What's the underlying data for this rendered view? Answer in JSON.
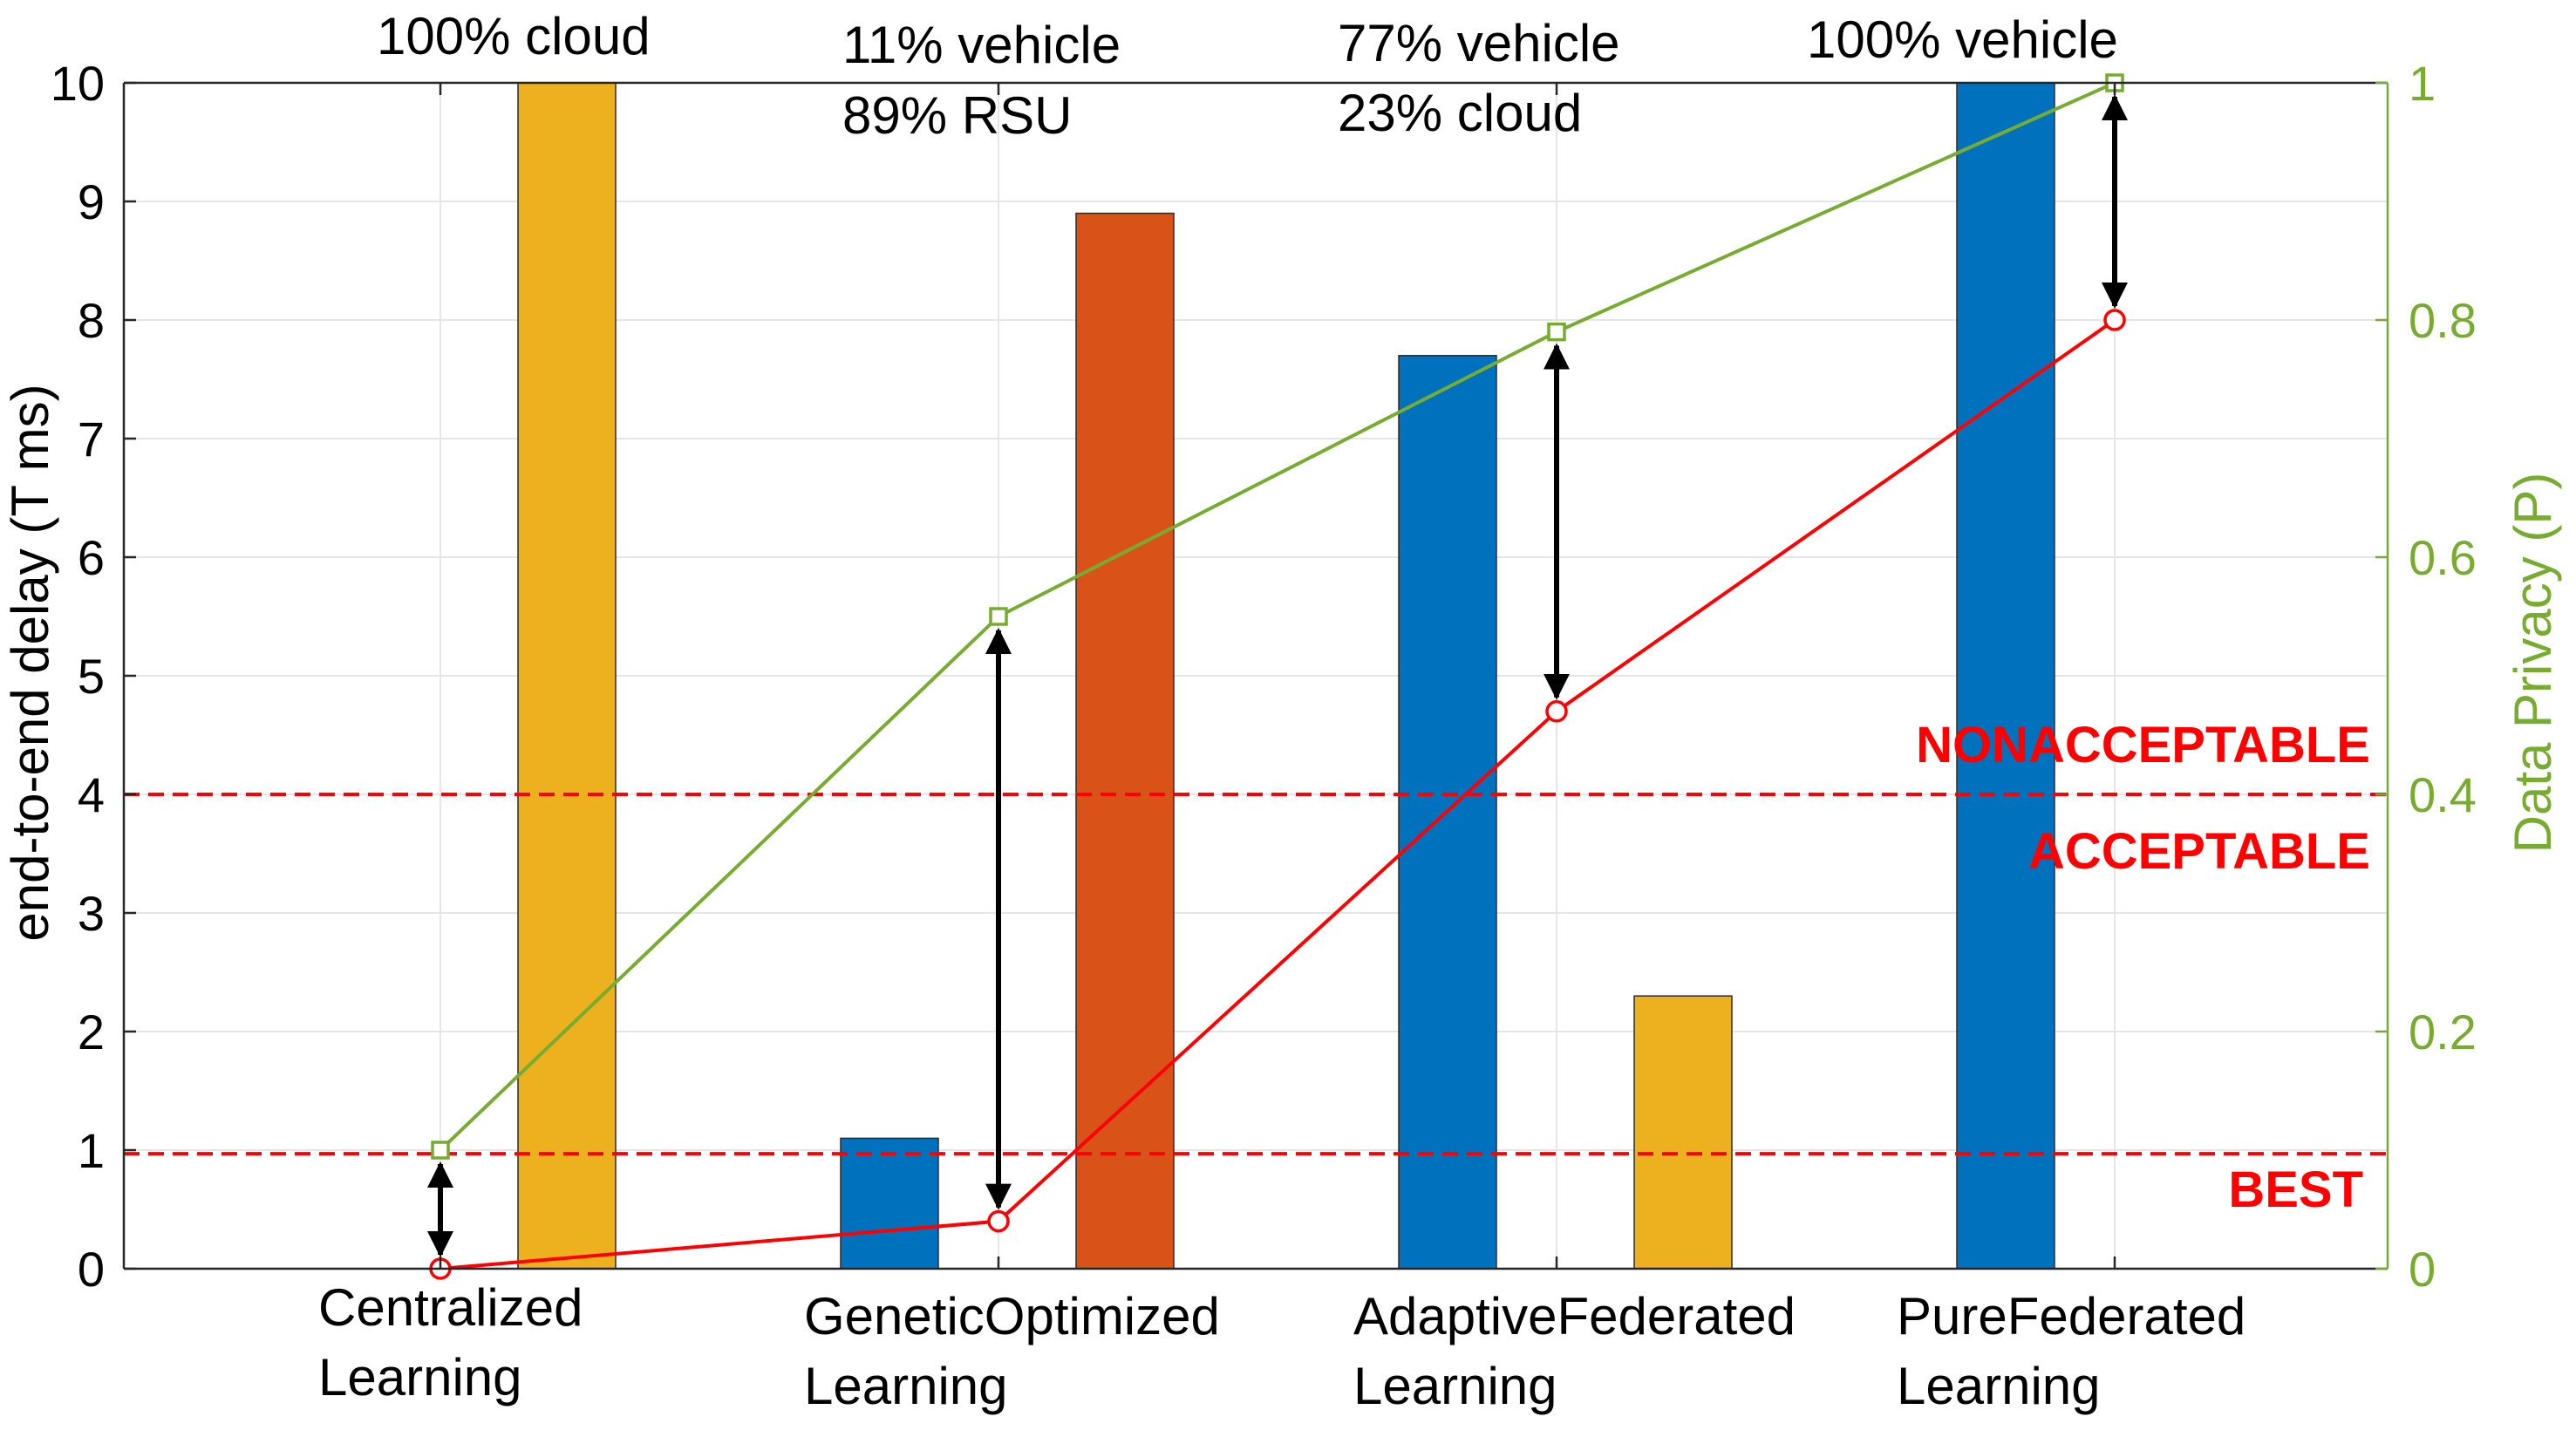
{
  "chart_data": {
    "type": "bar",
    "categories": [
      [
        "Centralized",
        "Learning"
      ],
      [
        "GeneticOptimized",
        "Learning"
      ],
      [
        "AdaptiveFederated",
        "Learning"
      ],
      [
        "PureFederated",
        "Learning"
      ]
    ],
    "bars": [
      {
        "category_index": 0,
        "slot": 1,
        "value": 10,
        "color": "#EDB120",
        "clipped": true
      },
      {
        "category_index": 1,
        "slot": 0,
        "value": 1.1,
        "color": "#0072BD"
      },
      {
        "category_index": 1,
        "slot": 1,
        "value": 8.9,
        "color": "#D95319"
      },
      {
        "category_index": 2,
        "slot": 0,
        "value": 7.7,
        "color": "#0072BD"
      },
      {
        "category_index": 2,
        "slot": 1,
        "value": 2.3,
        "color": "#EDB120"
      },
      {
        "category_index": 3,
        "slot": 0,
        "value": 10,
        "color": "#0072BD",
        "clipped": true
      }
    ],
    "bar_annotations": [
      [
        "100% cloud"
      ],
      [
        "11% vehicle",
        "89% RSU"
      ],
      [
        "77% vehicle",
        "23% cloud"
      ],
      [
        "100% vehicle"
      ]
    ],
    "delay_line": {
      "name": "end-to-end delay",
      "values": [
        0,
        0.4,
        4.7,
        8.0
      ],
      "color": "#FF0000",
      "marker": "circle"
    },
    "privacy_line": {
      "name": "Data Privacy",
      "values": [
        0.1,
        0.55,
        0.79,
        1.0
      ],
      "color": "#77AC30",
      "marker": "square"
    },
    "thresholds": [
      0.97,
      4.0
    ],
    "threshold_color": "#FF0000",
    "zone_labels": {
      "nonacceptable": "NONACCEPTABLE",
      "acceptable": "ACCEPTABLE",
      "best": "BEST"
    },
    "ylabel": "end-to-end delay (T ms)",
    "ylim": [
      0,
      10
    ],
    "yticks": [
      0,
      1,
      2,
      3,
      4,
      5,
      6,
      7,
      8,
      9,
      10
    ],
    "y2label": "Data Privacy (P)",
    "y2lim": [
      0,
      1
    ],
    "y2ticks": [
      "0",
      "0.2",
      "0.4",
      "0.6",
      "0.8",
      "1"
    ],
    "y2color": "#77AC30",
    "grid": true
  }
}
